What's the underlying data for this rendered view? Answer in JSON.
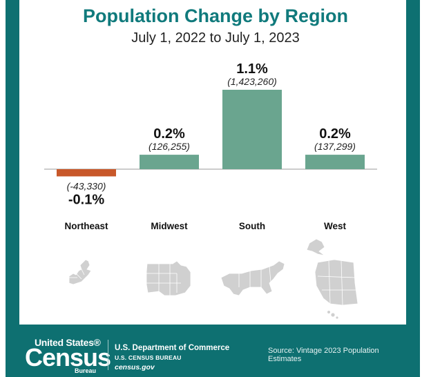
{
  "chart_data": {
    "type": "bar",
    "title": "Population Change by Region",
    "subtitle": "July 1, 2022 to July 1, 2023",
    "categories": [
      "Northeast",
      "Midwest",
      "South",
      "West"
    ],
    "values": [
      -0.1,
      0.2,
      1.1,
      0.2
    ],
    "value_labels": [
      "-0.1%",
      "0.2%",
      "1.1%",
      "0.2%"
    ],
    "absolute_change": [
      -43330,
      126255,
      1423260,
      137299
    ],
    "absolute_labels": [
      "(-43,330)",
      "(126,255)",
      "(1,423,260)",
      "(137,299)"
    ],
    "colors": [
      "#c8582a",
      "#6aa58f",
      "#6aa58f",
      "#6aa58f"
    ],
    "ylim": [
      -0.1,
      1.1
    ],
    "xlabel": "",
    "ylabel": "",
    "grid": false
  },
  "colors": {
    "brand": "#0e7071",
    "title": "#107a7c",
    "negative": "#c8582a",
    "positive": "#6aa58f"
  },
  "footer": {
    "logo_top": "United States®",
    "logo_main": "Census",
    "logo_bottom": "Bureau",
    "dept_line1": "U.S. Department of Commerce",
    "dept_line2": "U.S. CENSUS BUREAU",
    "dept_line3": "census.gov",
    "source": "Source: Vintage 2023 Population Estimates"
  }
}
